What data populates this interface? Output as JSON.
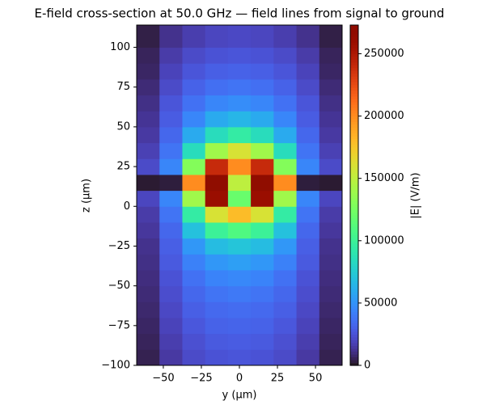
{
  "chart_data": {
    "type": "heatmap",
    "title": "E-field cross-section at 50.0 GHz — field lines from signal to ground",
    "x_label": "y (µm)",
    "y_label": "z (µm)",
    "colorbar_label": "|E| (V/m)",
    "colormap": "turbo",
    "xlim": [
      -67.5,
      67.5
    ],
    "ylim": [
      -100,
      114
    ],
    "xticks": [
      {
        "value": -50,
        "label": "−50"
      },
      {
        "value": -25,
        "label": "−25"
      },
      0,
      25,
      50
    ],
    "yticks": [
      {
        "value": -100,
        "label": "−100"
      },
      {
        "value": -75,
        "label": "−75"
      },
      {
        "value": -50,
        "label": "−50"
      },
      {
        "value": -25,
        "label": "−25"
      },
      0,
      25,
      50,
      75,
      100
    ],
    "clim": [
      0,
      273000
    ],
    "cticks": [
      0,
      50000,
      100000,
      150000,
      200000,
      250000
    ],
    "x_bins": [
      -67.5,
      -52.5,
      -37.5,
      -22.5,
      -7.5,
      7.5,
      22.5,
      37.5,
      52.5,
      67.5
    ],
    "y_bins": [
      -100,
      -90,
      -80,
      -70,
      -60,
      -50,
      -40,
      -30,
      -20,
      -10,
      0,
      10,
      20,
      30,
      40,
      50,
      60,
      70,
      80,
      90,
      100,
      114
    ],
    "values": [
      [
        5000,
        15000,
        22000,
        25000,
        26000,
        25000,
        22000,
        15000,
        5000
      ],
      [
        6000,
        17000,
        24000,
        28000,
        29000,
        28000,
        24000,
        17000,
        6000
      ],
      [
        7000,
        19000,
        27000,
        31000,
        32000,
        31000,
        27000,
        19000,
        7000
      ],
      [
        8000,
        21000,
        30000,
        34000,
        35000,
        34000,
        30000,
        21000,
        8000
      ],
      [
        9000,
        23000,
        33000,
        38000,
        40000,
        38000,
        33000,
        23000,
        9000
      ],
      [
        10000,
        25000,
        37000,
        44000,
        46000,
        44000,
        37000,
        25000,
        10000
      ],
      [
        11000,
        28000,
        43000,
        52000,
        55000,
        52000,
        43000,
        28000,
        11000
      ],
      [
        12000,
        30000,
        52000,
        68000,
        72000,
        68000,
        52000,
        30000,
        12000
      ],
      [
        14000,
        33000,
        70000,
        100000,
        110000,
        100000,
        70000,
        33000,
        14000
      ],
      [
        16000,
        38000,
        95000,
        160000,
        180000,
        160000,
        95000,
        38000,
        16000
      ],
      [
        20000,
        45000,
        140000,
        260000,
        120000,
        260000,
        140000,
        45000,
        20000
      ],
      [
        2000,
        3000,
        200000,
        273000,
        150000,
        273000,
        200000,
        3000,
        2000
      ],
      [
        22000,
        45000,
        130000,
        240000,
        200000,
        240000,
        130000,
        45000,
        22000
      ],
      [
        18000,
        38000,
        85000,
        140000,
        160000,
        140000,
        85000,
        38000,
        18000
      ],
      [
        15000,
        33000,
        60000,
        85000,
        95000,
        85000,
        60000,
        33000,
        15000
      ],
      [
        13000,
        29000,
        45000,
        60000,
        65000,
        60000,
        45000,
        29000,
        13000
      ],
      [
        11000,
        26000,
        37000,
        45000,
        48000,
        45000,
        37000,
        26000,
        11000
      ],
      [
        9000,
        22000,
        31000,
        36000,
        38000,
        36000,
        31000,
        22000,
        9000
      ],
      [
        7000,
        19000,
        26000,
        30000,
        31000,
        30000,
        26000,
        19000,
        7000
      ],
      [
        6000,
        16000,
        22000,
        25000,
        26000,
        25000,
        22000,
        16000,
        6000
      ],
      [
        4000,
        12000,
        17000,
        20000,
        21000,
        20000,
        17000,
        12000,
        4000
      ]
    ]
  }
}
